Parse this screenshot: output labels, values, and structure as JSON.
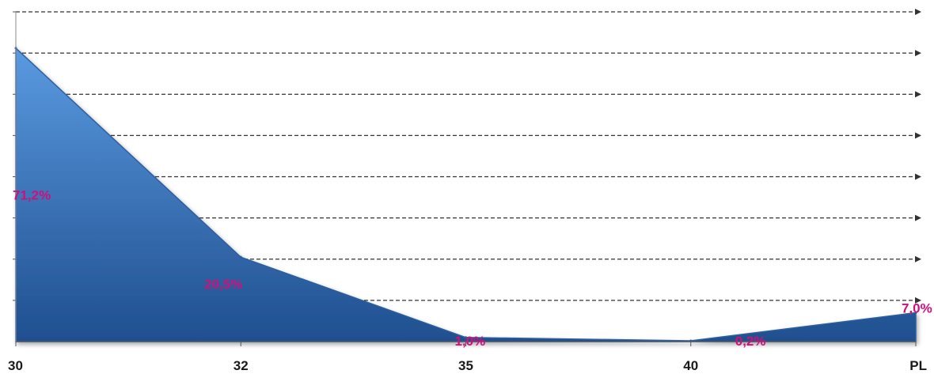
{
  "chart_data": {
    "type": "area",
    "title": "",
    "xlabel": "",
    "ylabel": "",
    "categories": [
      "30",
      "32",
      "35",
      "40",
      "PL"
    ],
    "series": [
      {
        "values": [
          71.2,
          20.5,
          1.0,
          0.2,
          7.0
        ]
      }
    ],
    "data_labels": [
      "71,2%",
      "20,5%",
      "1,0%",
      "0,2%",
      "7,0%"
    ],
    "ylim": [
      0,
      80
    ],
    "grid": true,
    "gridline_style": "dashed-arrow",
    "colors": {
      "area_top": "#5a9ae0",
      "area_bottom": "#1f4f8f",
      "outline": "#2d5fa0",
      "label": "#d0107a",
      "grid": "#333333"
    }
  }
}
